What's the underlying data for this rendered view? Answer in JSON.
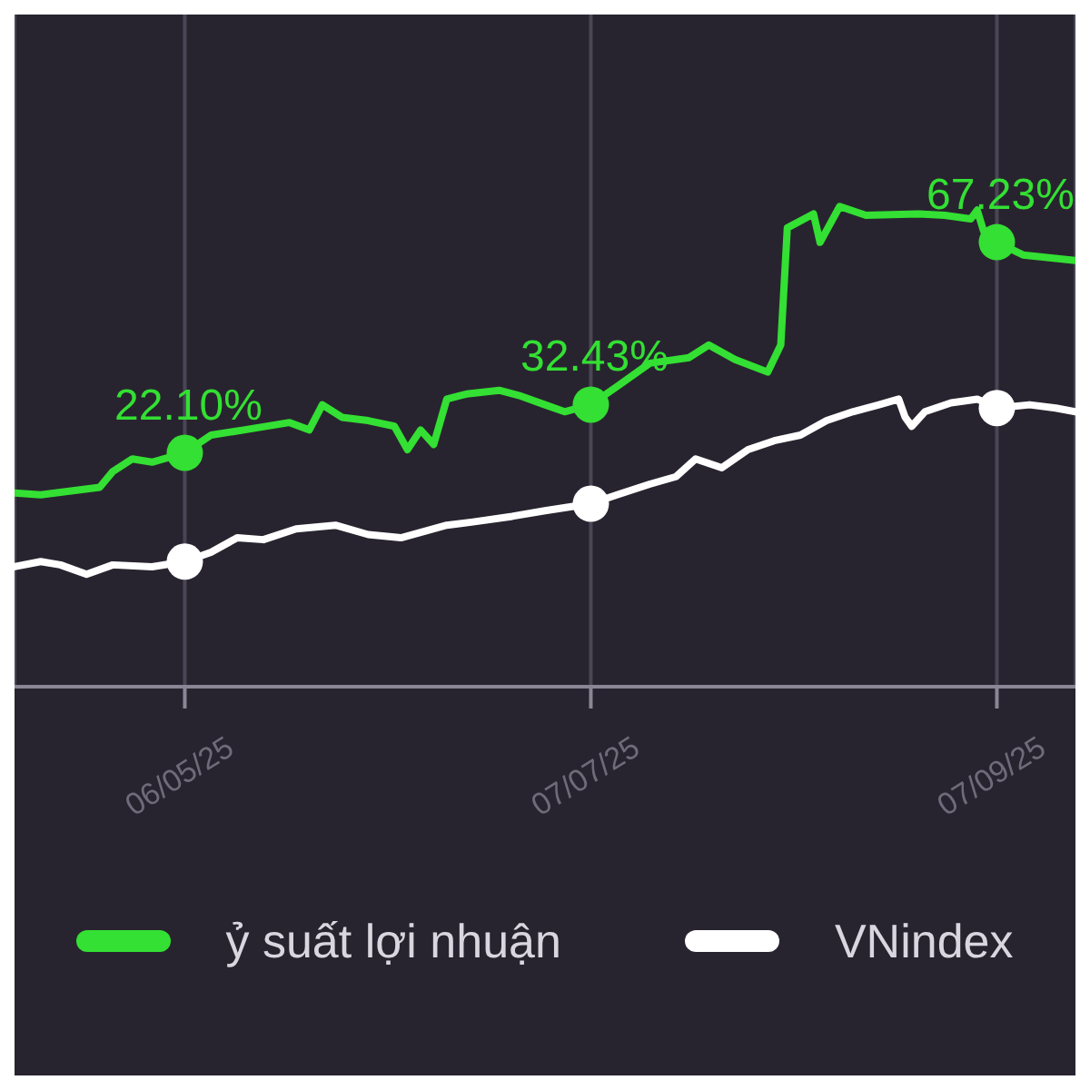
{
  "chart_data": {
    "type": "line",
    "xlim": [
      "2025-04-10",
      "2025-09-19"
    ],
    "ylim": [
      -28,
      116
    ],
    "xticks": [
      {
        "value": "2025-05-06",
        "label": "06/05/25"
      },
      {
        "value": "2025-07-07",
        "label": "07/07/25"
      },
      {
        "value": "2025-09-07",
        "label": "07/09/25"
      }
    ],
    "tick_labels": "x",
    "grid": "x",
    "legend": "bottom",
    "line_style": "solid",
    "series": [
      {
        "name": "ỷ suất lợi nhuận",
        "color": "#33e033",
        "x": [
          "2025-04-10",
          "2025-04-14",
          "2025-04-23",
          "2025-04-25",
          "2025-04-28",
          "2025-05-01",
          "2025-05-06",
          "2025-05-10",
          "2025-05-15",
          "2025-05-22",
          "2025-05-25",
          "2025-05-27",
          "2025-05-30",
          "2025-06-03",
          "2025-06-07",
          "2025-06-09",
          "2025-06-11",
          "2025-06-13",
          "2025-06-15",
          "2025-06-18",
          "2025-06-23",
          "2025-06-26",
          "2025-06-30",
          "2025-07-03",
          "2025-07-07",
          "2025-07-11",
          "2025-07-16",
          "2025-07-22",
          "2025-07-25",
          "2025-07-29",
          "2025-08-03",
          "2025-08-05",
          "2025-08-06",
          "2025-08-10",
          "2025-08-11",
          "2025-08-14",
          "2025-08-18",
          "2025-08-26",
          "2025-08-30",
          "2025-09-03",
          "2025-09-04",
          "2025-09-05",
          "2025-09-07",
          "2025-09-11",
          "2025-09-19"
        ],
        "values": [
          13.5,
          13.1,
          14.7,
          18.1,
          20.8,
          20.1,
          22.1,
          25.9,
          27.0,
          28.6,
          27.0,
          32.4,
          29.7,
          29.0,
          27.8,
          22.8,
          27.0,
          23.9,
          33.6,
          34.7,
          35.5,
          34.4,
          32.4,
          30.9,
          32.43,
          36.3,
          41.3,
          42.5,
          45.2,
          42.1,
          39.4,
          45.2,
          70.3,
          73.3,
          67.2,
          74.9,
          73.0,
          73.3,
          73.0,
          72.2,
          74.1,
          69.5,
          67.23,
          64.5,
          63.3
        ]
      },
      {
        "name": "VNindex",
        "color": "#ffffff",
        "x": [
          "2025-04-10",
          "2025-04-14",
          "2025-04-17",
          "2025-04-21",
          "2025-04-25",
          "2025-05-01",
          "2025-05-06",
          "2025-05-10",
          "2025-05-14",
          "2025-05-18",
          "2025-05-23",
          "2025-05-29",
          "2025-06-03",
          "2025-06-08",
          "2025-06-15",
          "2025-06-19",
          "2025-06-25",
          "2025-06-30",
          "2025-07-07",
          "2025-07-11",
          "2025-07-16",
          "2025-07-20",
          "2025-07-23",
          "2025-07-27",
          "2025-07-31",
          "2025-08-04",
          "2025-08-08",
          "2025-08-12",
          "2025-08-16",
          "2025-08-20",
          "2025-08-23",
          "2025-08-24",
          "2025-08-25",
          "2025-08-27",
          "2025-08-31",
          "2025-09-04",
          "2025-09-07",
          "2025-09-12",
          "2025-09-16",
          "2025-09-19"
        ],
        "values": [
          -2.3,
          -1.2,
          -1.9,
          -3.9,
          -1.9,
          -2.3,
          -1.2,
          0.8,
          3.9,
          3.5,
          5.8,
          6.6,
          4.6,
          3.9,
          6.6,
          7.3,
          8.5,
          9.7,
          11.2,
          13.1,
          15.4,
          17.0,
          20.8,
          18.9,
          22.8,
          24.7,
          25.9,
          29.0,
          30.9,
          32.4,
          33.6,
          29.7,
          27.8,
          30.9,
          32.8,
          33.6,
          31.7,
          32.4,
          31.7,
          30.9
        ]
      },
      {
        "type": "scatter",
        "marker": "circle",
        "color": "#33e033",
        "x": [
          "2025-05-06",
          "2025-07-07",
          "2025-09-07"
        ],
        "values": [
          22.1,
          32.43,
          67.23
        ],
        "value_labels": [
          "22.10%",
          "32.43%",
          "67.23%"
        ]
      },
      {
        "type": "scatter",
        "marker": "circle",
        "color": "#ffffff",
        "x": [
          "2025-05-06",
          "2025-07-07",
          "2025-09-07"
        ],
        "values": [
          -1.2,
          11.2,
          31.7
        ]
      }
    ]
  }
}
